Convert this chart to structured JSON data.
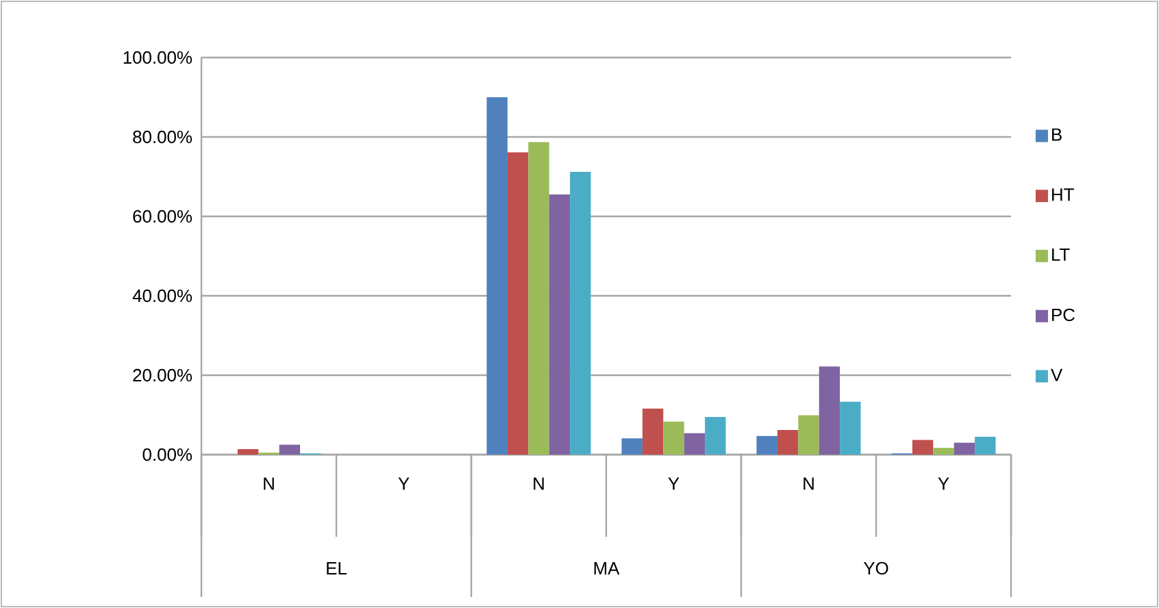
{
  "chart_data": {
    "type": "bar",
    "categories": [
      "N",
      "Y",
      "N",
      "Y",
      "N",
      "Y"
    ],
    "annotations": [
      "EL",
      "MA",
      "YO"
    ],
    "series": [
      {
        "name": "B",
        "color": "#4f81bd",
        "values": [
          0,
          0,
          90,
          4.1,
          4.7,
          0.3
        ]
      },
      {
        "name": "HT",
        "color": "#c0504d",
        "values": [
          1.4,
          0,
          76.1,
          11.6,
          6.2,
          3.7
        ]
      },
      {
        "name": "LT",
        "color": "#9bbb59",
        "values": [
          0.5,
          0,
          78.7,
          8.3,
          9.9,
          1.7
        ]
      },
      {
        "name": "PC",
        "color": "#8064a2",
        "values": [
          2.5,
          0,
          65.5,
          5.4,
          22.2,
          3.0
        ]
      },
      {
        "name": "V",
        "color": "#4bacc6",
        "values": [
          0.3,
          0,
          71.2,
          9.5,
          13.3,
          4.5
        ]
      }
    ],
    "ylim": [
      0,
      100
    ],
    "yticks": [
      {
        "value": 0,
        "label": "0.00%"
      },
      {
        "value": 20,
        "label": "20.00%"
      },
      {
        "value": 40,
        "label": "40.00%"
      },
      {
        "value": 60,
        "label": "60.00%"
      },
      {
        "value": 80,
        "label": "80.00%"
      },
      {
        "value": 100,
        "label": "100.00%"
      }
    ],
    "grid": "y",
    "legend": "right"
  }
}
